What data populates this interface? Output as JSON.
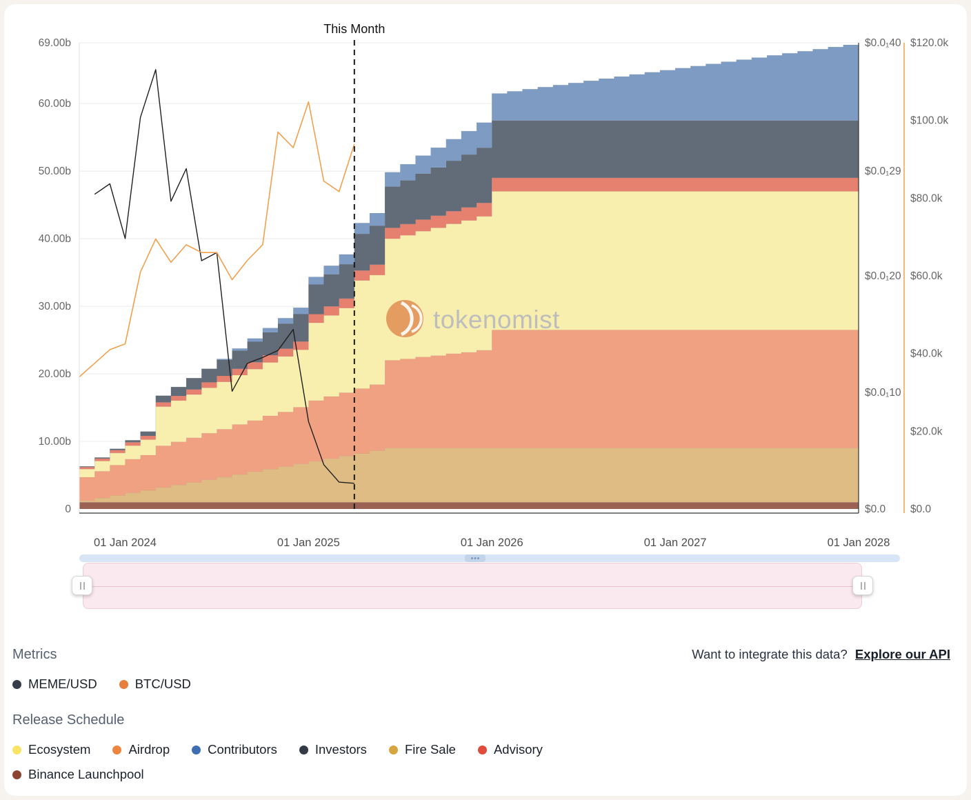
{
  "page": {
    "background": "#f6f2ee",
    "card_background": "#ffffff"
  },
  "chart": {
    "this_month_label": "This Month",
    "watermark": "tokenomist",
    "x_axis": {
      "ticks": [
        {
          "idx": 3,
          "label": "01 Jan 2024"
        },
        {
          "idx": 15,
          "label": "01 Jan 2025"
        },
        {
          "idx": 27,
          "label": "01 Jan 2026"
        },
        {
          "idx": 39,
          "label": "01 Jan 2027"
        },
        {
          "idx": 51,
          "label": "01 Jan 2028"
        }
      ]
    },
    "y_axis_left": {
      "max": 69,
      "ticks": [
        {
          "v": 0,
          "label": "0"
        },
        {
          "v": 10,
          "label": "10.00b"
        },
        {
          "v": 20,
          "label": "20.00b"
        },
        {
          "v": 30,
          "label": "30.00b"
        },
        {
          "v": 40,
          "label": "40.00b"
        },
        {
          "v": 50,
          "label": "50.00b"
        },
        {
          "v": 60,
          "label": "60.00b"
        },
        {
          "v": 69,
          "label": "69.00b"
        }
      ]
    },
    "y_axis_meme": {
      "max": 40,
      "ticks": [
        {
          "v": 0,
          "label": "$0.0"
        },
        {
          "v": 10,
          "label": "$0.0₁10"
        },
        {
          "v": 20,
          "label": "$0.0₁20"
        },
        {
          "v": 29,
          "label": "$0.0₁29"
        },
        {
          "v": 40,
          "label": "$0.0₁40"
        }
      ]
    },
    "y_axis_btc": {
      "max": 120,
      "ticks": [
        {
          "v": 0,
          "label": "$0.0"
        },
        {
          "v": 20,
          "label": "$20.0k"
        },
        {
          "v": 40,
          "label": "$40.0k"
        },
        {
          "v": 60,
          "label": "$60.0k"
        },
        {
          "v": 80,
          "label": "$80.0k"
        },
        {
          "v": 100,
          "label": "$100.0k"
        },
        {
          "v": 120,
          "label": "$120.0k"
        }
      ]
    }
  },
  "chart_data": {
    "type": "area",
    "stacking": "stepped-monthly-stack",
    "x_start": "2023-10",
    "x_step_months": 1,
    "points": 52,
    "this_month_index": 18,
    "ylim_left_billions": [
      0,
      69
    ],
    "ylim_meme": [
      0,
      40
    ],
    "ylim_btc_thousand_usd": [
      0,
      120
    ],
    "series": [
      {
        "name": "Binance Launchpool",
        "color": "#9b6154",
        "values": [
          1,
          1,
          1,
          1,
          1,
          1,
          1,
          1,
          1,
          1,
          1,
          1,
          1,
          1,
          1,
          1,
          1,
          1,
          1,
          1,
          1,
          1,
          1,
          1,
          1,
          1,
          1,
          1,
          1,
          1,
          1,
          1,
          1,
          1,
          1,
          1,
          1,
          1,
          1,
          1,
          1,
          1,
          1,
          1,
          1,
          1,
          1,
          1,
          1,
          1,
          1,
          1
        ]
      },
      {
        "name": "Fire Sale",
        "color": "#debc83",
        "values": [
          0.2,
          0.59,
          0.98,
          1.37,
          1.76,
          2.15,
          2.54,
          2.93,
          3.32,
          3.71,
          4.1,
          4.49,
          4.88,
          5.27,
          5.66,
          6.05,
          6.44,
          6.83,
          7.22,
          7.61,
          8,
          8,
          8,
          8,
          8,
          8,
          8,
          8,
          8,
          8,
          8,
          8,
          8,
          8,
          8,
          8,
          8,
          8,
          8,
          8,
          8,
          8,
          8,
          8,
          8,
          8,
          8,
          8,
          8,
          8,
          8,
          8
        ]
      },
      {
        "name": "Airdrop",
        "color": "#f0a181",
        "values": [
          3.5,
          4,
          4.5,
          5,
          5.2,
          6.2,
          6.4,
          6.6,
          6.9,
          7.1,
          7.4,
          7.6,
          7.9,
          8.1,
          8.4,
          9,
          9.2,
          9.4,
          9.6,
          9.8,
          13,
          13.2,
          13.5,
          13.7,
          14,
          14.2,
          14.5,
          17.5,
          17.5,
          17.5,
          17.5,
          17.5,
          17.5,
          17.5,
          17.5,
          17.5,
          17.5,
          17.5,
          17.5,
          17.5,
          17.5,
          17.5,
          17.5,
          17.5,
          17.5,
          17.5,
          17.5,
          17.5,
          17.5,
          17.5,
          17.5,
          17.5
        ]
      },
      {
        "name": "Ecosystem",
        "color": "#f8efae",
        "values": [
          1.2,
          1.5,
          1.8,
          2,
          2.3,
          5.8,
          6.1,
          6.4,
          6.7,
          7,
          7.3,
          7.6,
          7.9,
          8.2,
          8.5,
          11.5,
          12,
          12.5,
          16,
          16.2,
          18,
          18.3,
          18.6,
          18.9,
          19.2,
          19.5,
          19.8,
          20.5,
          20.5,
          20.5,
          20.5,
          20.5,
          20.5,
          20.5,
          20.5,
          20.5,
          20.5,
          20.5,
          20.5,
          20.5,
          20.5,
          20.5,
          20.5,
          20.5,
          20.5,
          20.5,
          20.5,
          20.5,
          20.5,
          20.5,
          20.5,
          20.5
        ]
      },
      {
        "name": "Advisory",
        "color": "#e6816f",
        "values": [
          0.3,
          0.37,
          0.43,
          0.5,
          0.56,
          0.63,
          0.69,
          0.76,
          0.82,
          0.89,
          0.95,
          1.02,
          1.08,
          1.15,
          1.21,
          1.28,
          1.34,
          1.41,
          1.47,
          1.54,
          1.6,
          1.67,
          1.73,
          1.8,
          1.86,
          1.93,
          1.99,
          2,
          2,
          2,
          2,
          2,
          2,
          2,
          2,
          2,
          2,
          2,
          2,
          2,
          2,
          2,
          2,
          2,
          2,
          2,
          2,
          2,
          2,
          2,
          2,
          2
        ]
      },
      {
        "name": "Investors",
        "color": "#626b78",
        "values": [
          0.1,
          0.15,
          0.2,
          0.3,
          0.64,
          0.98,
          1.33,
          1.67,
          2.01,
          2.35,
          2.69,
          3.04,
          3.38,
          3.72,
          4.06,
          4.4,
          4.75,
          5.09,
          5.43,
          5.77,
          6.11,
          6.46,
          6.8,
          7.14,
          7.48,
          7.82,
          8.17,
          8.5,
          8.5,
          8.5,
          8.5,
          8.5,
          8.5,
          8.5,
          8.5,
          8.5,
          8.5,
          8.5,
          8.5,
          8.5,
          8.5,
          8.5,
          8.5,
          8.5,
          8.5,
          8.5,
          8.5,
          8.5,
          8.5,
          8.5,
          8.5,
          8.5
        ]
      },
      {
        "name": "Contributors",
        "color": "#7e9cc3",
        "values": [
          0,
          0,
          0,
          0,
          0,
          0,
          0,
          0,
          0,
          0.16,
          0.32,
          0.48,
          0.64,
          0.8,
          0.96,
          1.12,
          1.28,
          1.44,
          1.6,
          1.87,
          2.13,
          2.4,
          2.67,
          2.93,
          3.2,
          3.47,
          3.73,
          4,
          4.31,
          4.63,
          4.94,
          5.25,
          5.56,
          5.88,
          6.19,
          6.5,
          6.81,
          7.13,
          7.44,
          7.75,
          8.06,
          8.38,
          8.69,
          9,
          9.31,
          9.63,
          9.94,
          10.25,
          10.56,
          10.88,
          11.19,
          11.5
        ]
      }
    ],
    "lines": [
      {
        "name": "MEME/USD",
        "axis": "meme",
        "color": "#1f1f1f",
        "values": [
          null,
          27,
          27.9,
          23.2,
          33.6,
          37.7,
          26.4,
          29.2,
          21.3,
          22,
          10.1,
          12.5,
          13,
          13.6,
          15.4,
          7.5,
          3.8,
          2.3,
          2.2,
          null,
          null,
          null,
          null,
          null,
          null,
          null,
          null,
          null,
          null,
          null,
          null,
          null,
          null,
          null,
          null,
          null,
          null,
          null,
          null,
          null,
          null,
          null,
          null,
          null,
          null,
          null,
          null,
          null,
          null,
          null,
          null,
          null
        ]
      },
      {
        "name": "BTC/USD",
        "axis": "btc",
        "color": "#f2a04c",
        "values": [
          34,
          37.5,
          41,
          42.5,
          61,
          69.5,
          63.5,
          68,
          66,
          66,
          59,
          64,
          68,
          97,
          93,
          104.8,
          84.4,
          81.7,
          93.9,
          null,
          null,
          null,
          null,
          null,
          null,
          null,
          null,
          null,
          null,
          null,
          null,
          null,
          null,
          null,
          null,
          null,
          null,
          null,
          null,
          null,
          null,
          null,
          null,
          null,
          null,
          null,
          null,
          null,
          null,
          null,
          null,
          null
        ]
      }
    ]
  },
  "metrics_section": {
    "title": "Metrics",
    "items": [
      {
        "label": "MEME/USD",
        "color": "#363c49"
      },
      {
        "label": "BTC/USD",
        "color": "#e67e3c"
      }
    ]
  },
  "api_prompt": {
    "text": "Want to integrate this data?",
    "link_label": "Explore our API"
  },
  "release_section": {
    "title": "Release Schedule",
    "items": [
      {
        "label": "Ecosystem",
        "color": "#f9e466"
      },
      {
        "label": "Airdrop",
        "color": "#ed8440"
      },
      {
        "label": "Contributors",
        "color": "#3d6eb4"
      },
      {
        "label": "Investors",
        "color": "#343a46"
      },
      {
        "label": "Fire Sale",
        "color": "#d6a53e"
      },
      {
        "label": "Advisory",
        "color": "#e14b3b"
      },
      {
        "label": "Binance Launchpool",
        "color": "#8a4431"
      }
    ]
  }
}
